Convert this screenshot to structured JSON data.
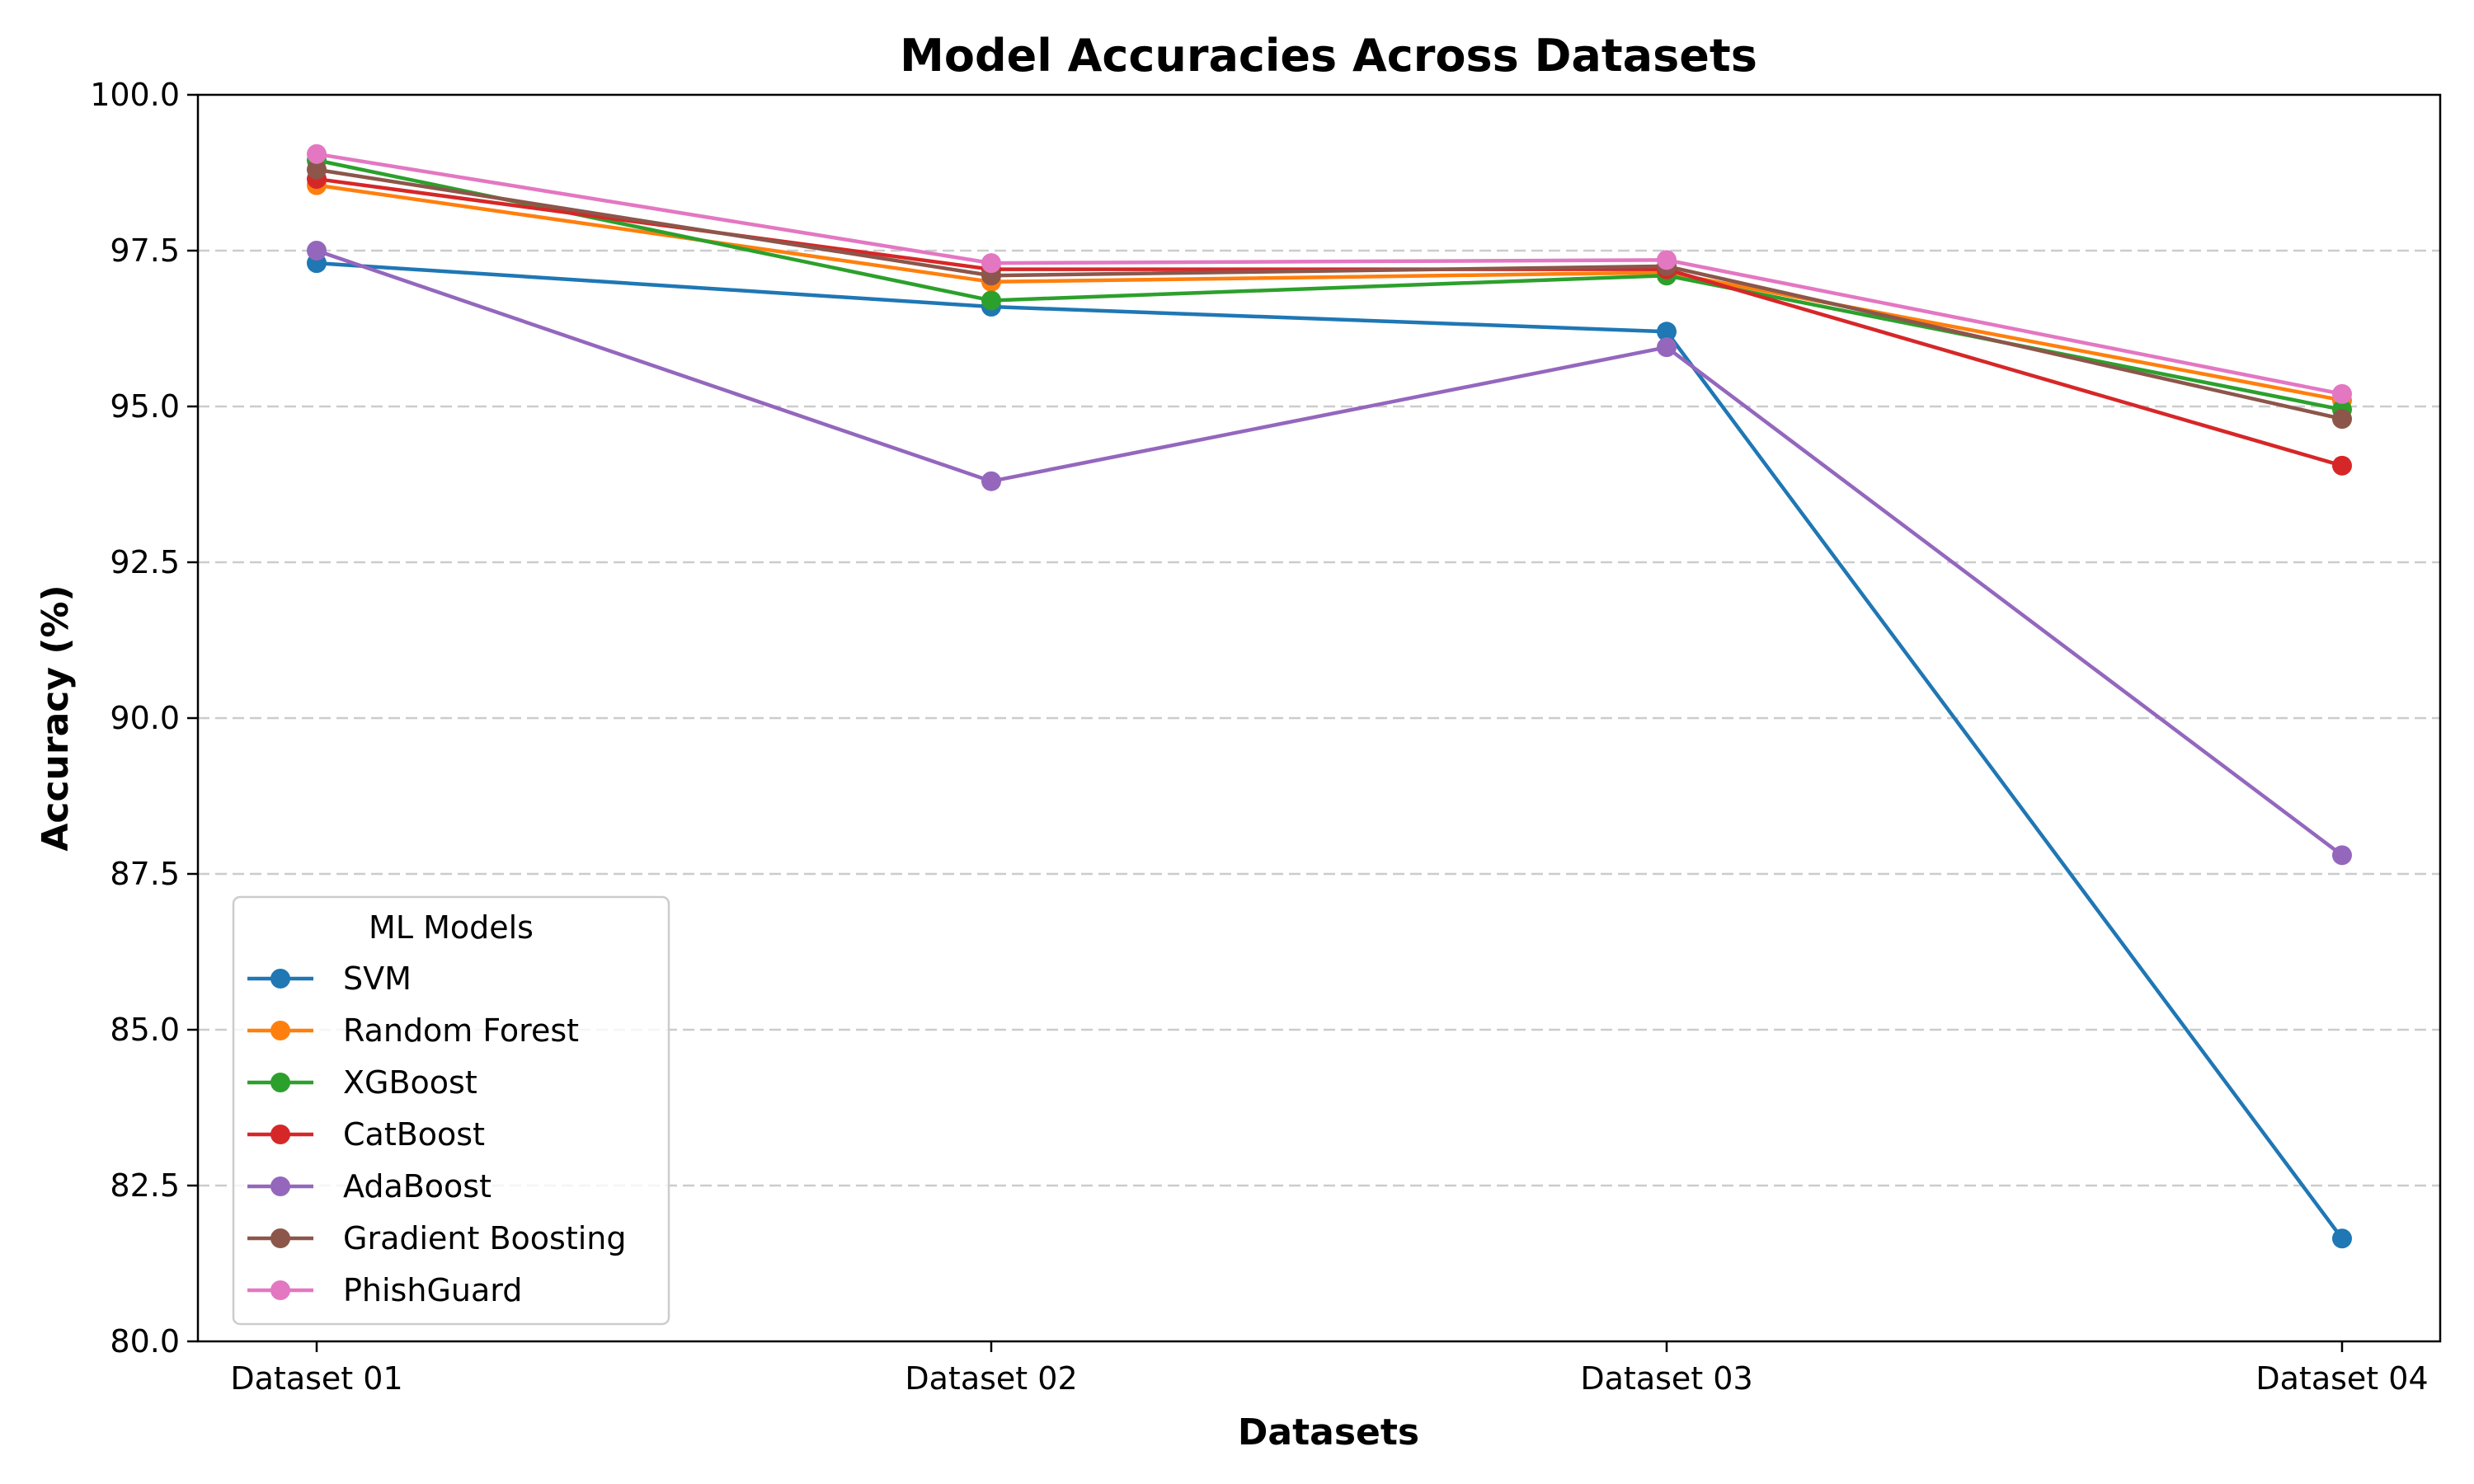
{
  "chart_data": {
    "type": "line",
    "title": "Model Accuracies Across Datasets",
    "xlabel": "Datasets",
    "ylabel": "Accuracy (%)",
    "categories": [
      "Dataset 01",
      "Dataset 02",
      "Dataset 03",
      "Dataset 04"
    ],
    "ylim": [
      80,
      100
    ],
    "yticks": [
      80.0,
      82.5,
      85.0,
      87.5,
      90.0,
      92.5,
      95.0,
      97.5,
      100.0
    ],
    "ytick_labels": [
      "80.0",
      "82.5",
      "85.0",
      "87.5",
      "90.0",
      "92.5",
      "95.0",
      "97.5",
      "100.0"
    ],
    "grid": "horizontal dashed",
    "legend": {
      "title": "ML Models",
      "placement": "lower-left"
    },
    "series": [
      {
        "name": "SVM",
        "color": "#1f77b4",
        "values": [
          97.3,
          96.6,
          96.2,
          81.65
        ]
      },
      {
        "name": "Random Forest",
        "color": "#ff7f0e",
        "values": [
          98.55,
          97.0,
          97.15,
          95.1
        ]
      },
      {
        "name": "XGBoost",
        "color": "#2ca02c",
        "values": [
          98.95,
          96.7,
          97.1,
          94.95
        ]
      },
      {
        "name": "CatBoost",
        "color": "#d62728",
        "values": [
          98.65,
          97.2,
          97.2,
          94.05
        ]
      },
      {
        "name": "AdaBoost",
        "color": "#9467bd",
        "values": [
          97.5,
          93.8,
          95.95,
          87.8
        ]
      },
      {
        "name": "Gradient Boosting",
        "color": "#8c564b",
        "values": [
          98.8,
          97.1,
          97.25,
          94.8
        ]
      },
      {
        "name": "PhishGuard",
        "color": "#e377c2",
        "values": [
          99.05,
          97.3,
          97.35,
          95.2
        ]
      }
    ]
  }
}
